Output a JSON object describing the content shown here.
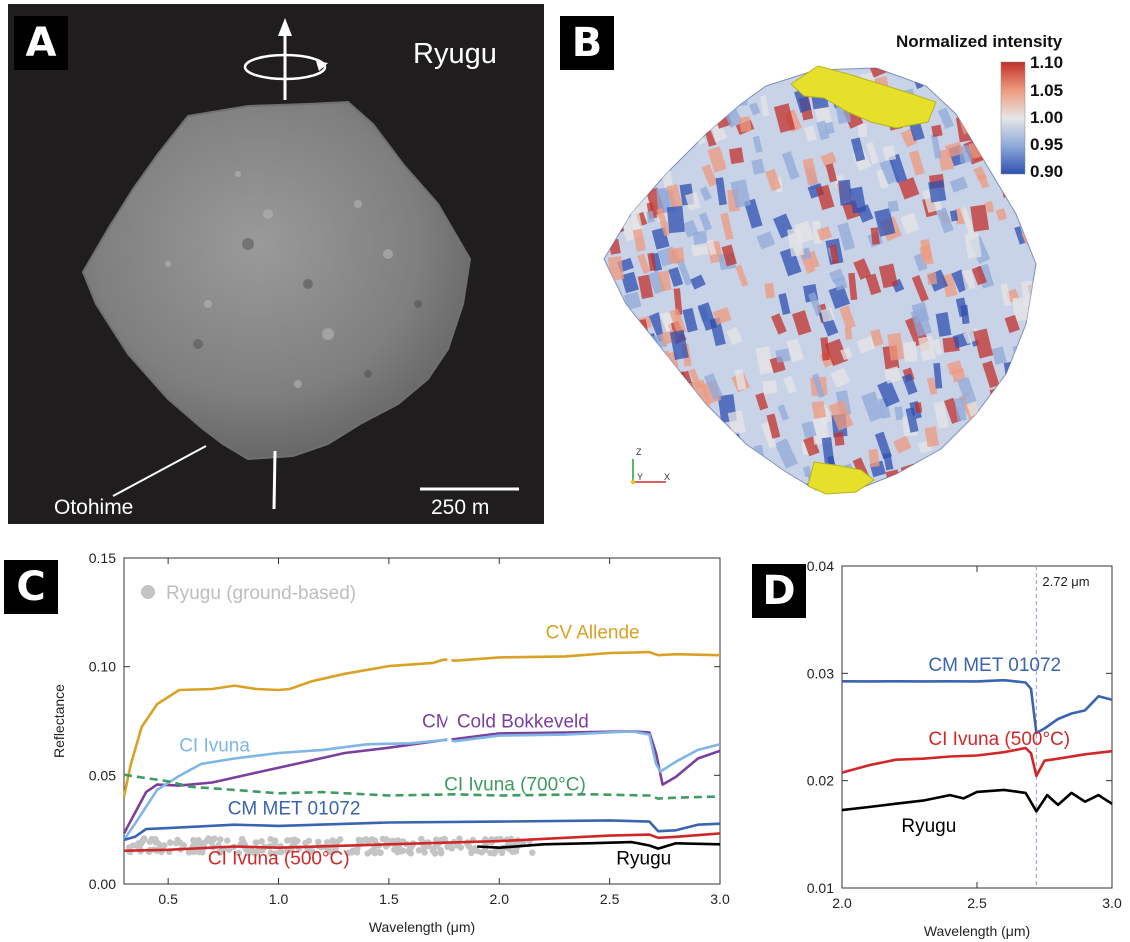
{
  "panel_a": {
    "tag": "A",
    "title": "Ryugu",
    "feature_label": "Otohime",
    "scale_label": "250 m"
  },
  "panel_b": {
    "tag": "B",
    "colorbar_title": "Normalized intensity",
    "colorbar_ticks": [
      "1.10",
      "1.05",
      "1.00",
      "0.95",
      "0.90"
    ],
    "colorbar_colors": [
      "#c0302b",
      "#ee9a7e",
      "#e6e6e6",
      "#8fa9d9",
      "#2d4fb0"
    ],
    "axis_triad": [
      "Z",
      "Y",
      "X"
    ],
    "highlight_color": "#e6e02a"
  },
  "chart_data": [
    {
      "tag": "C",
      "type": "line",
      "xlabel": "Wavelength (μm)",
      "ylabel": "Reflectance",
      "xlim": [
        0.3,
        3.0
      ],
      "ylim": [
        0.0,
        0.15
      ],
      "xticks": [
        "0.5",
        "1.0",
        "1.5",
        "2.0",
        "2.5",
        "3.0"
      ],
      "yticks": [
        "0.00",
        "0.05",
        "0.10",
        "0.15"
      ],
      "legend": [
        {
          "label": "Ryugu (ground-based)",
          "color": "#c4c4c4",
          "marker": "circle",
          "position": "top-left"
        }
      ],
      "series": [
        {
          "name": "CV Allende",
          "color": "#d9a126",
          "style": "solid",
          "x": [
            0.3,
            0.33,
            0.38,
            0.45,
            0.55,
            0.7,
            0.8,
            0.9,
            1.0,
            1.05,
            1.15,
            1.3,
            1.5,
            1.7,
            1.75,
            1.8,
            2.0,
            2.3,
            2.5,
            2.68,
            2.72,
            2.8,
            3.0
          ],
          "y": [
            0.04,
            0.055,
            0.072,
            0.083,
            0.089,
            0.09,
            0.091,
            0.09,
            0.089,
            0.09,
            0.093,
            0.097,
            0.1,
            0.102,
            0.103,
            0.103,
            0.104,
            0.105,
            0.106,
            0.107,
            0.105,
            0.106,
            0.105
          ]
        },
        {
          "name": "CM Cold Bokkeveld",
          "color": "#7b3fa0",
          "style": "solid",
          "x": [
            0.3,
            0.35,
            0.4,
            0.45,
            0.55,
            0.7,
            0.9,
            1.1,
            1.3,
            1.5,
            1.75,
            1.8,
            2.0,
            2.3,
            2.6,
            2.68,
            2.71,
            2.74,
            2.8,
            2.9,
            3.0
          ],
          "y": [
            0.023,
            0.033,
            0.042,
            0.046,
            0.045,
            0.047,
            0.051,
            0.056,
            0.06,
            0.063,
            0.066,
            0.067,
            0.069,
            0.07,
            0.07,
            0.07,
            0.06,
            0.046,
            0.049,
            0.058,
            0.061
          ]
        },
        {
          "name": "CI Ivuna",
          "color": "#7fb6e6",
          "style": "solid",
          "x": [
            0.3,
            0.35,
            0.45,
            0.55,
            0.65,
            0.8,
            1.0,
            1.2,
            1.4,
            1.6,
            1.75,
            1.8,
            2.0,
            2.3,
            2.6,
            2.68,
            2.71,
            2.73,
            2.8,
            2.9,
            3.0
          ],
          "y": [
            0.02,
            0.028,
            0.043,
            0.05,
            0.055,
            0.058,
            0.06,
            0.062,
            0.064,
            0.065,
            0.066,
            0.066,
            0.068,
            0.069,
            0.07,
            0.069,
            0.055,
            0.052,
            0.056,
            0.062,
            0.064
          ]
        },
        {
          "name": "CI Ivuna (700°C)",
          "color": "#3f9b62",
          "style": "dashed",
          "x": [
            0.3,
            0.4,
            0.5,
            0.6,
            0.8,
            1.0,
            1.2,
            1.5,
            1.8,
            2.0,
            2.4,
            2.68,
            2.72,
            2.8,
            3.0
          ],
          "y": [
            0.05,
            0.049,
            0.047,
            0.045,
            0.043,
            0.042,
            0.042,
            0.041,
            0.041,
            0.041,
            0.041,
            0.041,
            0.039,
            0.04,
            0.04
          ]
        },
        {
          "name": "CM MET 01072",
          "color": "#3a64b0",
          "style": "solid",
          "x": [
            0.3,
            0.35,
            0.4,
            0.5,
            0.8,
            1.0,
            1.5,
            2.0,
            2.5,
            2.68,
            2.72,
            2.8,
            2.9,
            3.0
          ],
          "y": [
            0.02,
            0.022,
            0.025,
            0.026,
            0.027,
            0.027,
            0.028,
            0.029,
            0.029,
            0.029,
            0.024,
            0.025,
            0.027,
            0.028
          ]
        },
        {
          "name": "CI Ivuna (500°C)",
          "color": "#d0282a",
          "style": "solid",
          "x": [
            0.3,
            0.5,
            0.8,
            1.0,
            1.5,
            2.0,
            2.5,
            2.68,
            2.72,
            2.8,
            3.0
          ],
          "y": [
            0.015,
            0.016,
            0.017,
            0.017,
            0.018,
            0.02,
            0.022,
            0.023,
            0.021,
            0.022,
            0.023
          ]
        },
        {
          "name": "Ryugu",
          "color": "#000000",
          "style": "solid",
          "x": [
            1.9,
            2.0,
            2.2,
            2.4,
            2.6,
            2.68,
            2.72,
            2.8,
            3.0
          ],
          "y": [
            0.017,
            0.017,
            0.018,
            0.019,
            0.019,
            0.018,
            0.016,
            0.019,
            0.018
          ]
        }
      ],
      "annotations": [
        {
          "text": "CV Allende",
          "x": 2.21,
          "y": 0.113
        },
        {
          "text": "CM Cold Bokkeveld",
          "x": 1.65,
          "y": 0.072
        },
        {
          "text": "CI Ivuna",
          "x": 0.55,
          "y": 0.061
        },
        {
          "text": "CI Ivuna (700°C)",
          "x": 1.75,
          "y": 0.043
        },
        {
          "text": "CM MET 01072",
          "x": 0.77,
          "y": 0.032
        },
        {
          "text": "CI Ivuna (500°C)",
          "x": 0.68,
          "y": 0.009
        },
        {
          "text": "Ryugu",
          "x": 2.53,
          "y": 0.009
        }
      ]
    },
    {
      "tag": "D",
      "type": "line",
      "xlabel": "Wavelength (μm)",
      "ylabel": "",
      "xlim": [
        2.0,
        3.0
      ],
      "ylim": [
        0.01,
        0.04
      ],
      "xticks": [
        "2.0",
        "2.5",
        "3.0"
      ],
      "yticks": [
        "0.01",
        "0.02",
        "0.03",
        "0.04"
      ],
      "vline": {
        "x": 2.72,
        "label": "2.72 μm"
      },
      "series": [
        {
          "name": "CM MET 01072",
          "color": "#3a64b0",
          "style": "solid",
          "x": [
            2.0,
            2.1,
            2.2,
            2.3,
            2.4,
            2.5,
            2.6,
            2.68,
            2.7,
            2.72,
            2.75,
            2.8,
            2.85,
            2.9,
            2.95,
            3.0
          ],
          "y": [
            0.0292,
            0.0293,
            0.0292,
            0.0293,
            0.0292,
            0.0293,
            0.0293,
            0.0292,
            0.0285,
            0.0245,
            0.0248,
            0.0258,
            0.0262,
            0.0266,
            0.0278,
            0.0276
          ]
        },
        {
          "name": "CI Ivuna (500°C)",
          "color": "#d0282a",
          "style": "solid",
          "x": [
            2.0,
            2.1,
            2.2,
            2.3,
            2.4,
            2.5,
            2.6,
            2.68,
            2.7,
            2.72,
            2.75,
            2.8,
            2.9,
            3.0
          ],
          "y": [
            0.0207,
            0.0215,
            0.0219,
            0.0221,
            0.0222,
            0.0224,
            0.0226,
            0.0231,
            0.0225,
            0.0205,
            0.0218,
            0.0221,
            0.0224,
            0.0228
          ]
        },
        {
          "name": "Ryugu",
          "color": "#000000",
          "style": "solid",
          "x": [
            2.0,
            2.1,
            2.2,
            2.3,
            2.4,
            2.45,
            2.5,
            2.6,
            2.68,
            2.72,
            2.76,
            2.8,
            2.85,
            2.9,
            2.95,
            3.0
          ],
          "y": [
            0.0172,
            0.0176,
            0.0178,
            0.0182,
            0.0186,
            0.0184,
            0.0189,
            0.0192,
            0.0188,
            0.0172,
            0.0186,
            0.0178,
            0.0188,
            0.0181,
            0.0186,
            0.0179
          ]
        }
      ],
      "annotations": [
        {
          "text": "CM MET 01072",
          "x": 2.32,
          "y": 0.0302
        },
        {
          "text": "CI Ivuna (500°C)",
          "x": 2.32,
          "y": 0.0233
        },
        {
          "text": "Ryugu",
          "x": 2.22,
          "y": 0.0152
        }
      ]
    }
  ]
}
